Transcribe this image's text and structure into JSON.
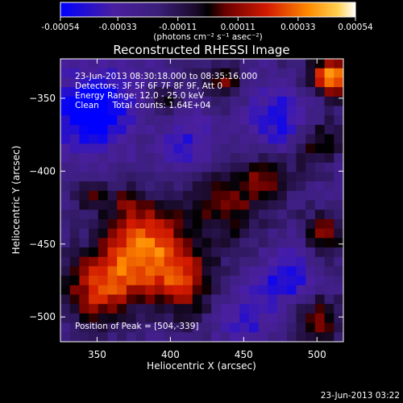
{
  "colors": {
    "background": "#000000",
    "text": "#ffffff",
    "colormap": [
      "#0000ff",
      "#4a1fa0",
      "#3b1f7a",
      "#1a0a2a",
      "#000000",
      "#6a0000",
      "#d21a00",
      "#ff8a00",
      "#ffd050",
      "#ffffff"
    ]
  },
  "colorbar": {
    "tick_labels": [
      "-0.00054",
      "-0.00033",
      "-0.00011",
      "0.00011",
      "0.00033",
      "0.00054"
    ],
    "units_label": "(photons cm⁻² s⁻¹ asec⁻²)",
    "range": [
      -0.00054,
      0.00054
    ]
  },
  "info": {
    "line1": "23-Jun-2013 08:30:18.000 to 08:35:16.000",
    "line2": "Detectors: 3F 5F 6F 7F 8F 9F, Att 0",
    "line3": "Energy Range: 12.0 - 25.0 keV",
    "line4": "Clean     Total counts: 1.64E+04",
    "peak": "Position of Peak = [504,-339]"
  },
  "footer_timestamp": "23-Jun-2013 03:22",
  "chart_data": {
    "type": "heatmap",
    "title": "Reconstructed RHESSI Image",
    "xlabel": "Heliocentric X (arcsec)",
    "ylabel": "Heliocentric Y (arcsec)",
    "xlim": [
      325,
      518
    ],
    "ylim": [
      -517,
      -323
    ],
    "x_ticks": [
      350,
      400,
      450,
      500
    ],
    "y_ticks": [
      -350,
      -400,
      -450,
      -500
    ],
    "grid": false,
    "colorbar_position": "top",
    "grid_cols": 30,
    "grid_rows": 30,
    "z_range": [
      -0.00054,
      0.00054
    ],
    "peak": [
      504,
      -339
    ]
  }
}
